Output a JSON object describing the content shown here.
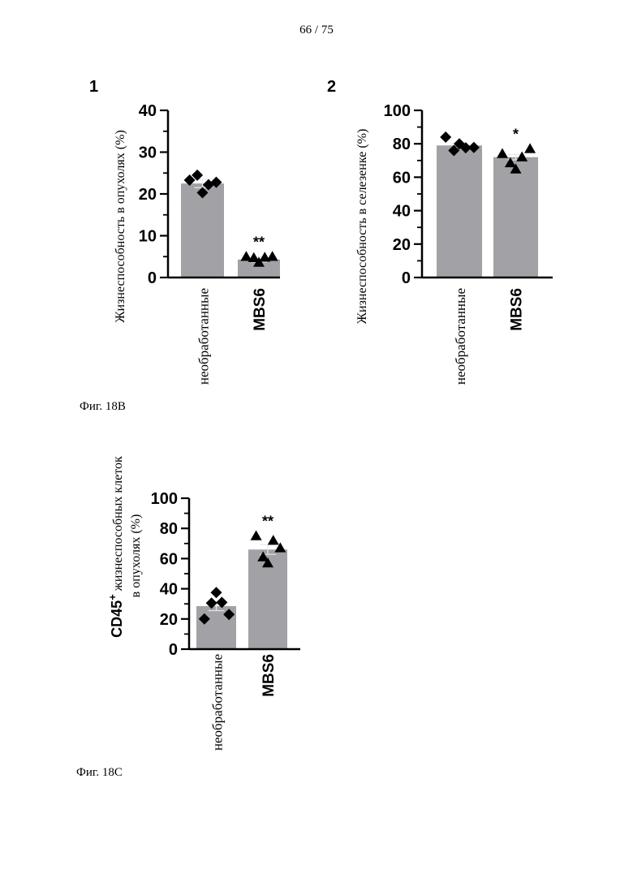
{
  "page_number": "66 / 75",
  "figures": [
    {
      "caption": "Фиг. 18B"
    },
    {
      "caption": "Фиг. 18C"
    }
  ],
  "chart_data": [
    {
      "type": "bar",
      "panel_label": "1",
      "categories": [
        "необработанные",
        "MBS6"
      ],
      "values": [
        22.5,
        4.3
      ],
      "errors": [
        1.0,
        0.6
      ],
      "ylabel": "Жизнеспособность в опухолях (%)",
      "ylabel_bold_prefix": "",
      "ylim": [
        0,
        40
      ],
      "yticks": [
        0,
        10,
        20,
        30,
        40
      ],
      "significance": [
        "",
        "**"
      ],
      "points": [
        {
          "marker": "diamond",
          "values": [
            23.3,
            24.5,
            20.3,
            22.2,
            22.8
          ]
        },
        {
          "marker": "triangle",
          "values": [
            5.0,
            4.7,
            3.6,
            4.8,
            5.0
          ]
        }
      ],
      "bar_color": "#a2a2a6",
      "bold_category": [
        false,
        true
      ]
    },
    {
      "type": "bar",
      "panel_label": "2",
      "categories": [
        "необработанные",
        "MBS6"
      ],
      "values": [
        79.0,
        72.0
      ],
      "errors": [
        1.2,
        1.6
      ],
      "ylabel": "Жизнеспособность в селезенке (%)",
      "ylabel_bold_prefix": "",
      "ylim": [
        0,
        100
      ],
      "yticks": [
        0,
        20,
        40,
        60,
        80,
        100
      ],
      "significance": [
        "",
        "*"
      ],
      "points": [
        {
          "marker": "diamond",
          "values": [
            84.0,
            76.0,
            80.0,
            77.6,
            77.8
          ]
        },
        {
          "marker": "triangle",
          "values": [
            74.0,
            68.5,
            64.8,
            72.0,
            77.0
          ]
        }
      ],
      "bar_color": "#a2a2a6",
      "bold_category": [
        false,
        true
      ]
    },
    {
      "type": "bar",
      "panel_label": "",
      "categories": [
        "необработанные",
        "MBS6"
      ],
      "values": [
        28.5,
        66.0
      ],
      "errors": [
        3.0,
        3.2
      ],
      "ylabel": "жизнеспособных клеток",
      "ylabel_line2": "в опухолях (%)",
      "ylabel_bold_prefix": "CD45",
      "ylabel_bold_sup": "+",
      "ylim": [
        0,
        100
      ],
      "yticks": [
        0,
        20,
        40,
        60,
        80,
        100
      ],
      "significance": [
        "",
        "**"
      ],
      "points": [
        {
          "marker": "diamond",
          "values": [
            20.0,
            30.5,
            37.5,
            31.0,
            23.0
          ]
        },
        {
          "marker": "triangle",
          "values": [
            75.0,
            61.0,
            57.0,
            72.0,
            67.0
          ]
        }
      ],
      "bar_color": "#a2a2a6",
      "bold_category": [
        false,
        true
      ]
    }
  ]
}
